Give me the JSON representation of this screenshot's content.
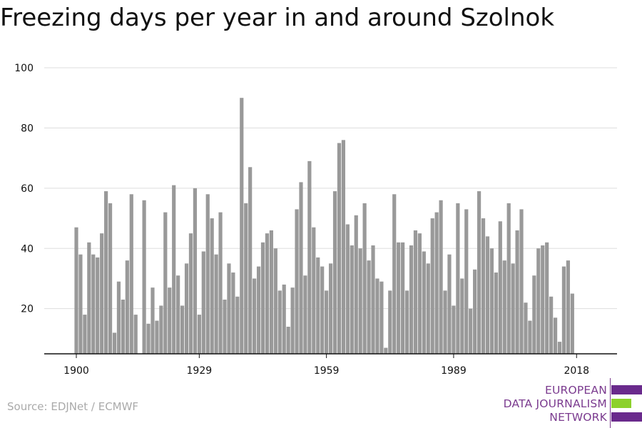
{
  "title": "Freezing days per year in and around Szolnok",
  "source": "Source: EDJNet / ECMWF",
  "logo": {
    "lines": [
      "EUROPEAN",
      "DATA JOURNALISM",
      "NETWORK"
    ],
    "purple": "#6a2a8c",
    "green": "#8cd12c",
    "text_color": "#7b3b8f"
  },
  "chart_data": {
    "type": "bar",
    "title": "Freezing days per year in and around Szolnok",
    "xlabel": "",
    "ylabel": "",
    "x_start": 1900,
    "x_end": 2018,
    "xticks": [
      1900,
      1929,
      1959,
      1989,
      2018
    ],
    "yticks": [
      20,
      40,
      60,
      80,
      100
    ],
    "ylim": [
      5,
      100
    ],
    "bar_color": "#999999",
    "grid": true,
    "values": [
      47,
      38,
      18,
      42,
      38,
      37,
      45,
      59,
      55,
      12,
      29,
      23,
      36,
      58,
      18,
      5,
      56,
      15,
      27,
      16,
      21,
      52,
      27,
      61,
      31,
      21,
      35,
      45,
      60,
      18,
      39,
      58,
      50,
      38,
      52,
      23,
      35,
      32,
      24,
      90,
      55,
      67,
      30,
      34,
      42,
      45,
      46,
      40,
      26,
      28,
      14,
      27,
      53,
      62,
      31,
      69,
      47,
      37,
      34,
      26,
      35,
      59,
      75,
      76,
      48,
      41,
      51,
      40,
      55,
      36,
      41,
      30,
      29,
      7,
      26,
      58,
      42,
      42,
      26,
      41,
      46,
      45,
      39,
      35,
      50,
      52,
      56,
      26,
      38,
      21,
      55,
      30,
      53,
      20,
      33,
      59,
      50,
      44,
      40,
      32,
      49,
      36,
      55,
      35,
      46,
      53,
      22,
      16,
      31,
      40,
      41,
      42,
      24,
      17,
      9,
      34,
      36,
      25
    ]
  }
}
